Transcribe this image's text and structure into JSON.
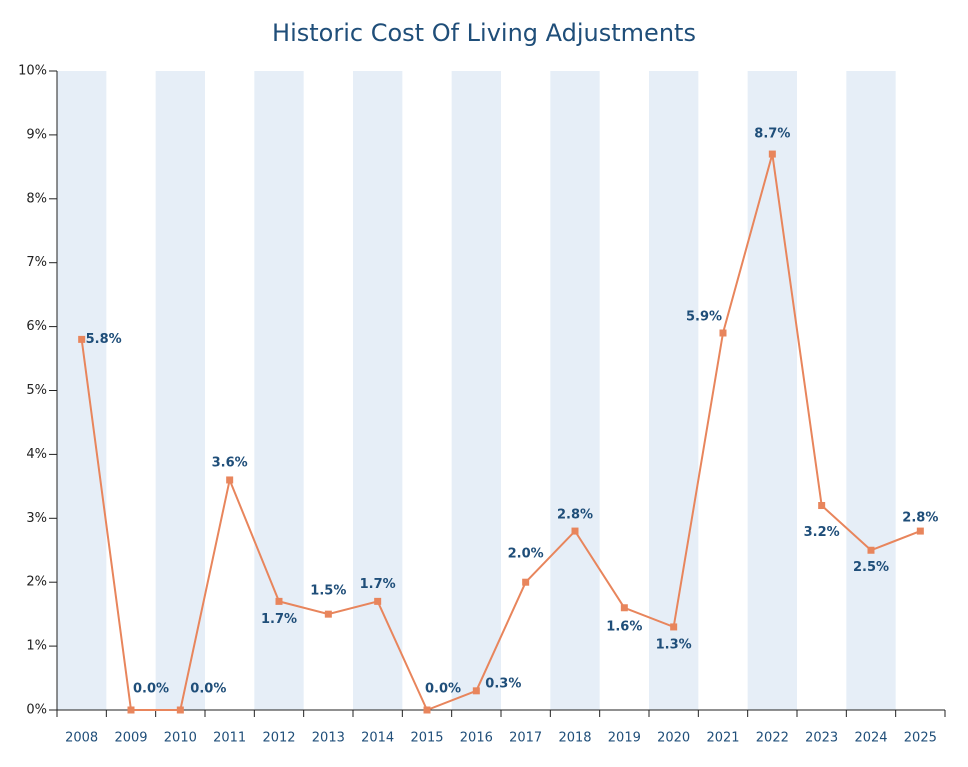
{
  "chart_data": {
    "type": "line",
    "title": "Historic Cost Of Living Adjustments",
    "categories": [
      "2008",
      "2009",
      "2010",
      "2011",
      "2012",
      "2013",
      "2014",
      "2015",
      "2016",
      "2017",
      "2018",
      "2019",
      "2020",
      "2021",
      "2022",
      "2023",
      "2024",
      "2025"
    ],
    "values": [
      5.8,
      0.0,
      0.0,
      3.6,
      1.7,
      1.5,
      1.7,
      0.0,
      0.3,
      2.0,
      2.8,
      1.6,
      1.3,
      5.9,
      8.7,
      3.2,
      2.5,
      2.8
    ],
    "value_labels": [
      "5.8%",
      "0.0%",
      "0.0%",
      "3.6%",
      "1.7%",
      "1.5%",
      "1.7%",
      "0.0%",
      "0.3%",
      "2.0%",
      "2.8%",
      "1.6%",
      "1.3%",
      "5.9%",
      "8.7%",
      "3.2%",
      "2.5%",
      "2.8%"
    ],
    "color": "#e8855c",
    "band_color": "#e6eef7",
    "ylim": [
      0,
      10
    ],
    "yticks": [
      {
        "value": 0,
        "label": "0%"
      },
      {
        "value": 1,
        "label": "1%"
      },
      {
        "value": 2,
        "label": "2%"
      },
      {
        "value": 3,
        "label": "3%"
      },
      {
        "value": 4,
        "label": "4%"
      },
      {
        "value": 5,
        "label": "5%"
      },
      {
        "value": 6,
        "label": "6%"
      },
      {
        "value": 7,
        "label": "7%"
      },
      {
        "value": 8,
        "label": "8%"
      },
      {
        "value": 9,
        "label": "9%"
      },
      {
        "value": 10,
        "label": "10%"
      }
    ]
  }
}
